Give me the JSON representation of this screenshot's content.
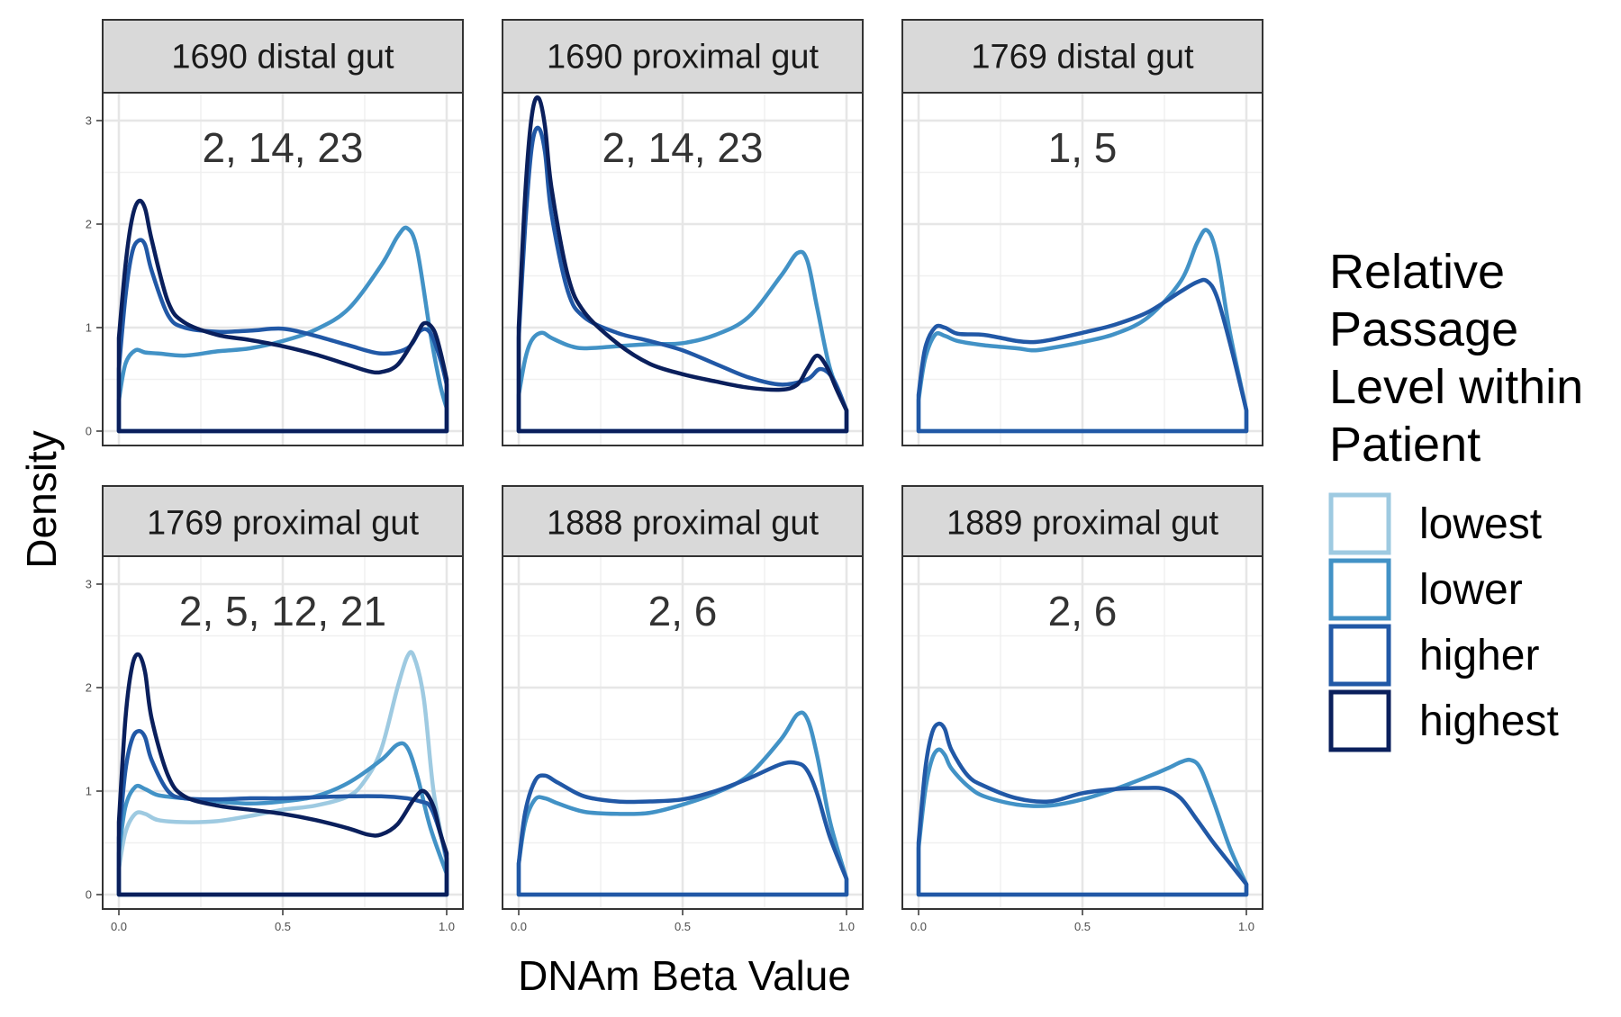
{
  "chart_data": {
    "type": "line",
    "facet_layout": "3 columns x 2 rows",
    "xlabel": "DNAm Beta Value",
    "ylabel": "Density",
    "xlim": [
      0,
      1
    ],
    "ylim": [
      0,
      3.2
    ],
    "x_ticks": [
      "0.0",
      "0.5",
      "1.0"
    ],
    "y_ticks": [
      "0",
      "1",
      "2",
      "3"
    ],
    "grid": true,
    "legend": {
      "title": "Relative Passage Level within Patient",
      "title_lines": [
        "Relative",
        "Passage",
        "Level within",
        "Patient"
      ],
      "placement": "right",
      "entries": [
        {
          "label": "lowest",
          "color": "#9ecae1"
        },
        {
          "label": "lower",
          "color": "#4292c6"
        },
        {
          "label": "higher",
          "color": "#2158a6"
        },
        {
          "label": "highest",
          "color": "#0a1f5c"
        }
      ]
    },
    "panels": [
      {
        "title": "1690 distal gut",
        "annotation": "2, 14, 23",
        "series": [
          {
            "name": "lower",
            "x": [
              0,
              0.02,
              0.05,
              0.08,
              0.12,
              0.2,
              0.3,
              0.4,
              0.5,
              0.6,
              0.7,
              0.8,
              0.85,
              0.88,
              0.91,
              0.95,
              0.98,
              1.0
            ],
            "y": [
              0.3,
              0.65,
              0.78,
              0.76,
              0.75,
              0.73,
              0.77,
              0.8,
              0.87,
              0.98,
              1.18,
              1.6,
              1.88,
              1.96,
              1.75,
              0.95,
              0.45,
              0.22
            ]
          },
          {
            "name": "higher",
            "x": [
              0,
              0.02,
              0.04,
              0.06,
              0.08,
              0.1,
              0.15,
              0.2,
              0.3,
              0.4,
              0.5,
              0.6,
              0.7,
              0.8,
              0.88,
              0.92,
              0.95,
              0.98,
              1.0
            ],
            "y": [
              0.6,
              1.3,
              1.72,
              1.84,
              1.8,
              1.55,
              1.12,
              1.0,
              0.96,
              0.97,
              0.99,
              0.92,
              0.83,
              0.75,
              0.8,
              0.97,
              0.95,
              0.7,
              0.45
            ]
          },
          {
            "name": "highest",
            "x": [
              0,
              0.02,
              0.04,
              0.06,
              0.08,
              0.1,
              0.15,
              0.2,
              0.3,
              0.4,
              0.5,
              0.6,
              0.7,
              0.76,
              0.8,
              0.85,
              0.9,
              0.93,
              0.96,
              0.98,
              1.0
            ],
            "y": [
              0.9,
              1.6,
              2.05,
              2.22,
              2.15,
              1.85,
              1.25,
              1.05,
              0.93,
              0.88,
              0.82,
              0.74,
              0.64,
              0.58,
              0.57,
              0.64,
              0.88,
              1.04,
              0.98,
              0.78,
              0.5
            ]
          }
        ]
      },
      {
        "title": "1690 proximal gut",
        "annotation": "2, 14, 23",
        "series": [
          {
            "name": "lower",
            "x": [
              0,
              0.02,
              0.04,
              0.07,
              0.1,
              0.15,
              0.2,
              0.3,
              0.4,
              0.5,
              0.6,
              0.7,
              0.8,
              0.85,
              0.88,
              0.91,
              0.95,
              1.0
            ],
            "y": [
              0.35,
              0.7,
              0.88,
              0.95,
              0.9,
              0.83,
              0.8,
              0.82,
              0.84,
              0.85,
              0.93,
              1.1,
              1.5,
              1.72,
              1.65,
              1.2,
              0.6,
              0.2
            ]
          },
          {
            "name": "higher",
            "x": [
              0,
              0.02,
              0.04,
              0.06,
              0.08,
              0.1,
              0.15,
              0.2,
              0.3,
              0.4,
              0.5,
              0.6,
              0.7,
              0.8,
              0.88,
              0.92,
              0.96,
              1.0
            ],
            "y": [
              0.9,
              2.0,
              2.75,
              2.93,
              2.7,
              2.1,
              1.35,
              1.1,
              0.95,
              0.87,
              0.78,
              0.65,
              0.52,
              0.45,
              0.5,
              0.6,
              0.5,
              0.2
            ]
          },
          {
            "name": "highest",
            "x": [
              0,
              0.02,
              0.04,
              0.06,
              0.08,
              0.1,
              0.15,
              0.2,
              0.3,
              0.4,
              0.5,
              0.6,
              0.7,
              0.8,
              0.85,
              0.88,
              0.91,
              0.94,
              0.97,
              1.0
            ],
            "y": [
              1.0,
              2.3,
              3.05,
              3.22,
              2.95,
              2.35,
              1.5,
              1.15,
              0.85,
              0.65,
              0.55,
              0.48,
              0.42,
              0.4,
              0.45,
              0.6,
              0.73,
              0.62,
              0.4,
              0.2
            ]
          }
        ]
      },
      {
        "title": "1769 distal gut",
        "annotation": "1, 5",
        "series": [
          {
            "name": "lower",
            "x": [
              0,
              0.02,
              0.05,
              0.08,
              0.12,
              0.2,
              0.3,
              0.35,
              0.4,
              0.5,
              0.6,
              0.7,
              0.8,
              0.85,
              0.88,
              0.91,
              0.95,
              1.0
            ],
            "y": [
              0.3,
              0.7,
              0.93,
              0.92,
              0.87,
              0.83,
              0.8,
              0.78,
              0.8,
              0.86,
              0.94,
              1.1,
              1.45,
              1.82,
              1.94,
              1.7,
              0.95,
              0.2
            ]
          },
          {
            "name": "higher",
            "x": [
              0,
              0.02,
              0.05,
              0.08,
              0.12,
              0.2,
              0.3,
              0.35,
              0.4,
              0.5,
              0.6,
              0.7,
              0.8,
              0.85,
              0.88,
              0.91,
              0.95,
              1.0
            ],
            "y": [
              0.35,
              0.8,
              1.0,
              1.0,
              0.94,
              0.93,
              0.87,
              0.86,
              0.88,
              0.95,
              1.03,
              1.15,
              1.35,
              1.44,
              1.45,
              1.3,
              0.85,
              0.2
            ]
          }
        ]
      },
      {
        "title": "1769 proximal gut",
        "annotation": "2, 5, 12, 21",
        "series": [
          {
            "name": "lowest",
            "x": [
              0,
              0.02,
              0.05,
              0.08,
              0.12,
              0.2,
              0.3,
              0.4,
              0.5,
              0.6,
              0.7,
              0.75,
              0.8,
              0.85,
              0.88,
              0.9,
              0.93,
              0.96,
              1.0
            ],
            "y": [
              0.25,
              0.6,
              0.78,
              0.78,
              0.72,
              0.7,
              0.71,
              0.76,
              0.82,
              0.86,
              0.95,
              1.1,
              1.4,
              2.0,
              2.3,
              2.3,
              1.9,
              1.0,
              0.3
            ]
          },
          {
            "name": "lower",
            "x": [
              0,
              0.02,
              0.05,
              0.08,
              0.12,
              0.2,
              0.3,
              0.4,
              0.5,
              0.6,
              0.7,
              0.8,
              0.85,
              0.88,
              0.91,
              0.95,
              1.0
            ],
            "y": [
              0.4,
              0.85,
              1.04,
              1.02,
              0.96,
              0.93,
              0.9,
              0.88,
              0.9,
              0.95,
              1.08,
              1.3,
              1.45,
              1.42,
              1.15,
              0.65,
              0.2
            ]
          },
          {
            "name": "higher",
            "x": [
              0,
              0.02,
              0.04,
              0.06,
              0.08,
              0.1,
              0.15,
              0.2,
              0.3,
              0.4,
              0.5,
              0.6,
              0.7,
              0.8,
              0.88,
              0.92,
              0.95,
              0.98,
              1.0
            ],
            "y": [
              0.55,
              1.2,
              1.5,
              1.58,
              1.52,
              1.3,
              1.0,
              0.93,
              0.92,
              0.93,
              0.93,
              0.94,
              0.95,
              0.95,
              0.93,
              0.9,
              0.85,
              0.6,
              0.35
            ]
          },
          {
            "name": "highest",
            "x": [
              0,
              0.02,
              0.04,
              0.06,
              0.08,
              0.1,
              0.15,
              0.2,
              0.3,
              0.4,
              0.5,
              0.6,
              0.7,
              0.76,
              0.8,
              0.85,
              0.9,
              0.93,
              0.96,
              0.98,
              1.0
            ],
            "y": [
              0.7,
              1.7,
              2.2,
              2.32,
              2.15,
              1.7,
              1.15,
              0.95,
              0.86,
              0.82,
              0.78,
              0.72,
              0.64,
              0.58,
              0.58,
              0.68,
              0.92,
              1.0,
              0.85,
              0.6,
              0.4
            ]
          }
        ]
      },
      {
        "title": "1888 proximal gut",
        "annotation": "2, 6",
        "series": [
          {
            "name": "lower",
            "x": [
              0,
              0.02,
              0.05,
              0.08,
              0.12,
              0.2,
              0.3,
              0.4,
              0.5,
              0.6,
              0.7,
              0.8,
              0.85,
              0.88,
              0.91,
              0.95,
              1.0
            ],
            "y": [
              0.3,
              0.7,
              0.92,
              0.93,
              0.88,
              0.8,
              0.78,
              0.79,
              0.87,
              0.98,
              1.15,
              1.5,
              1.74,
              1.7,
              1.35,
              0.7,
              0.15
            ]
          },
          {
            "name": "higher",
            "x": [
              0,
              0.02,
              0.05,
              0.08,
              0.12,
              0.2,
              0.3,
              0.4,
              0.5,
              0.6,
              0.7,
              0.8,
              0.85,
              0.88,
              0.91,
              0.95,
              1.0
            ],
            "y": [
              0.3,
              0.8,
              1.1,
              1.15,
              1.08,
              0.95,
              0.9,
              0.9,
              0.92,
              1.0,
              1.12,
              1.26,
              1.27,
              1.2,
              0.98,
              0.55,
              0.15
            ]
          }
        ]
      },
      {
        "title": "1889 proximal gut",
        "annotation": "2, 6",
        "series": [
          {
            "name": "lower",
            "x": [
              0,
              0.02,
              0.04,
              0.06,
              0.08,
              0.1,
              0.15,
              0.2,
              0.3,
              0.4,
              0.5,
              0.6,
              0.7,
              0.76,
              0.8,
              0.83,
              0.86,
              0.9,
              0.95,
              1.0
            ],
            "y": [
              0.45,
              1.0,
              1.3,
              1.4,
              1.35,
              1.22,
              1.05,
              0.95,
              0.87,
              0.86,
              0.92,
              1.02,
              1.14,
              1.22,
              1.28,
              1.3,
              1.22,
              0.9,
              0.45,
              0.1
            ]
          },
          {
            "name": "higher",
            "x": [
              0,
              0.02,
              0.04,
              0.06,
              0.08,
              0.1,
              0.15,
              0.2,
              0.3,
              0.4,
              0.5,
              0.6,
              0.7,
              0.75,
              0.8,
              0.85,
              0.9,
              0.95,
              1.0
            ],
            "y": [
              0.5,
              1.2,
              1.55,
              1.65,
              1.6,
              1.4,
              1.15,
              1.05,
              0.93,
              0.9,
              0.98,
              1.02,
              1.03,
              1.02,
              0.93,
              0.72,
              0.5,
              0.3,
              0.1
            ]
          }
        ]
      }
    ]
  }
}
